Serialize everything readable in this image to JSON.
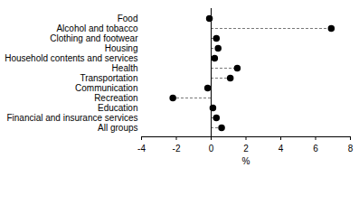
{
  "chart_data": {
    "type": "dot",
    "orientation": "horizontal",
    "categories": [
      "Food",
      "Alcohol and tobacco",
      "Clothing and footwear",
      "Housing",
      "Household contents and services",
      "Health",
      "Transportation",
      "Communication",
      "Recreation",
      "Education",
      "Financial and insurance services",
      "All groups"
    ],
    "values": [
      -0.1,
      6.9,
      0.3,
      0.4,
      0.2,
      1.5,
      1.1,
      -0.2,
      -2.2,
      0.1,
      0.3,
      0.6
    ],
    "x_label": "%",
    "xlim": [
      -4,
      8
    ],
    "xticks": [
      -4,
      -2,
      0,
      2,
      4,
      6,
      8
    ],
    "color": "#000000",
    "marker": "circle",
    "line_style": "dashed",
    "grid": false
  }
}
